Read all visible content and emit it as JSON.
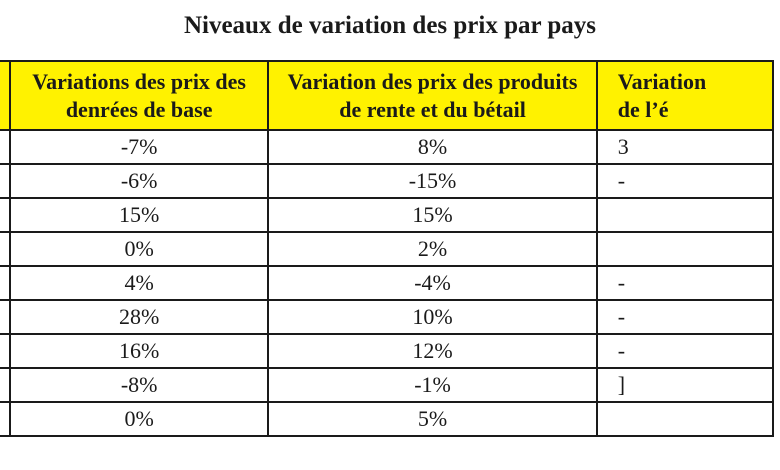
{
  "title": "Niveaux de variation des prix par pays",
  "colors": {
    "header_bg": "#fff200",
    "border": "#1a1a1a",
    "text": "#1a1a1a"
  },
  "table": {
    "columns": [
      "",
      "Variations des prix des\ndenrées de base",
      "Variation des prix des produits\nde rente et du bétail",
      "Variation\nde l’é"
    ],
    "rows": [
      [
        "",
        "-7%",
        "8%",
        "3"
      ],
      [
        "",
        "-6%",
        "-15%",
        "-"
      ],
      [
        "",
        "15%",
        "15%",
        ""
      ],
      [
        "",
        "0%",
        "2%",
        ""
      ],
      [
        "",
        "4%",
        "-4%",
        "-"
      ],
      [
        "",
        "28%",
        "10%",
        "-"
      ],
      [
        "",
        "16%",
        "12%",
        "-"
      ],
      [
        "",
        "-8%",
        "-1%",
        "]"
      ],
      [
        "",
        "0%",
        "5%",
        ""
      ]
    ]
  }
}
